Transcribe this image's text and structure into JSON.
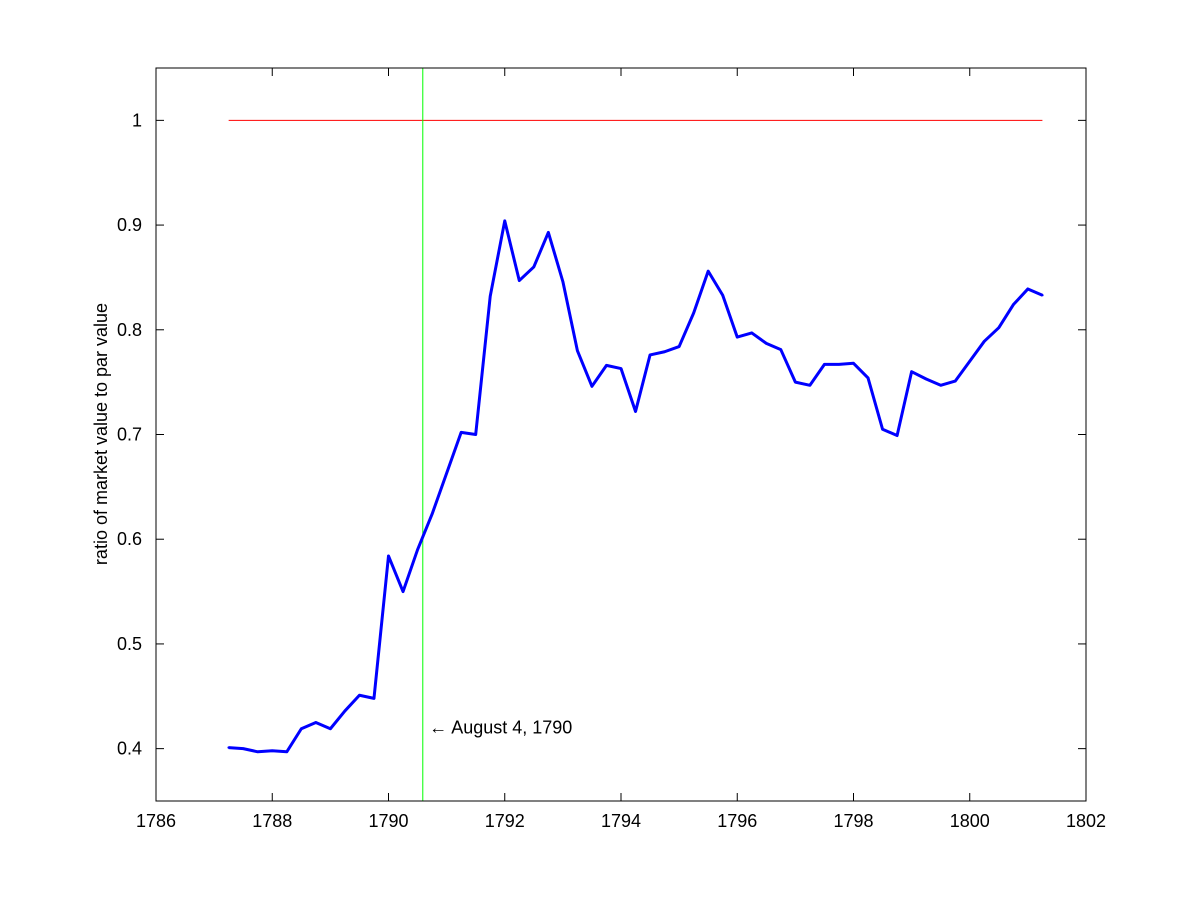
{
  "chart_data": {
    "type": "line",
    "title": "",
    "xlabel": "",
    "ylabel": "ratio of market value to par value",
    "xlim": [
      1786,
      1802
    ],
    "ylim": [
      0.35,
      1.05
    ],
    "xticks": [
      1786,
      1788,
      1790,
      1792,
      1794,
      1796,
      1798,
      1800,
      1802
    ],
    "yticks": [
      0.4,
      0.5,
      0.6,
      0.7,
      0.8,
      0.9,
      1
    ],
    "x_tick_labels": [
      "1786",
      "1788",
      "1790",
      "1792",
      "1794",
      "1796",
      "1798",
      "1800",
      "1802"
    ],
    "y_tick_labels": [
      "0.4",
      "0.5",
      "0.6",
      "0.7",
      "0.8",
      "0.9",
      "1"
    ],
    "grid": false,
    "series": [
      {
        "color": "#0000ff",
        "x": [
          1787.25,
          1787.5,
          1787.75,
          1788.0,
          1788.25,
          1788.5,
          1788.75,
          1789.0,
          1789.25,
          1789.5,
          1789.75,
          1790.0,
          1790.25,
          1790.5,
          1790.75,
          1791.0,
          1791.25,
          1791.5,
          1791.75,
          1792.0,
          1792.25,
          1792.5,
          1792.75,
          1793.0,
          1793.25,
          1793.5,
          1793.75,
          1794.0,
          1794.25,
          1794.5,
          1794.75,
          1795.0,
          1795.25,
          1795.5,
          1795.75,
          1796.0,
          1796.25,
          1796.5,
          1796.75,
          1797.0,
          1797.25,
          1797.5,
          1797.75,
          1798.0,
          1798.25,
          1798.5,
          1798.75,
          1799.0,
          1799.25,
          1799.5,
          1799.75,
          1800.0,
          1800.25,
          1800.5,
          1800.75,
          1801.0,
          1801.25
        ],
        "y": [
          0.401,
          0.4,
          0.397,
          0.398,
          0.397,
          0.419,
          0.425,
          0.419,
          0.436,
          0.451,
          0.448,
          0.584,
          0.55,
          0.59,
          0.624,
          0.663,
          0.702,
          0.7,
          0.832,
          0.904,
          0.847,
          0.86,
          0.893,
          0.846,
          0.78,
          0.746,
          0.766,
          0.763,
          0.722,
          0.776,
          0.779,
          0.784,
          0.816,
          0.856,
          0.833,
          0.793,
          0.797,
          0.787,
          0.781,
          0.75,
          0.747,
          0.767,
          0.767,
          0.768,
          0.754,
          0.705,
          0.699,
          0.76,
          0.753,
          0.747,
          0.751,
          0.77,
          0.789,
          0.802,
          0.824,
          0.839,
          0.833
        ]
      },
      {
        "color": "#ff0000",
        "x": [
          1787.25,
          1801.25
        ],
        "y": [
          1,
          1
        ]
      }
    ],
    "reference_line": {
      "x": 1790.59,
      "color": "#00ff00"
    },
    "annotation": {
      "text": "← August 4, 1790",
      "x": 1790.7,
      "y": 0.42
    }
  }
}
